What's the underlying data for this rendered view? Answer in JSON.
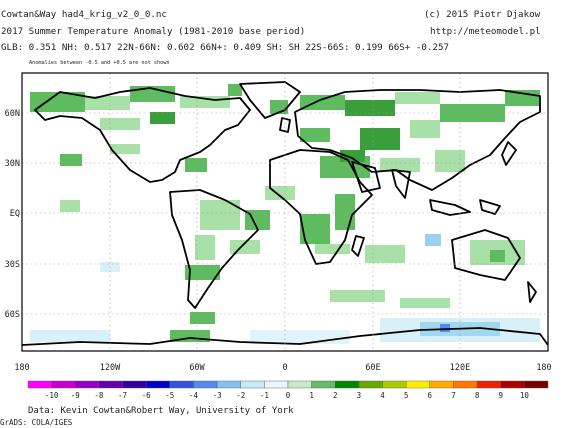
{
  "header": {
    "source": "Cowtan&Way had4_krig_v2_0_0.nc",
    "copyright": "(c) 2015 Piotr Djakow",
    "title": "2017 Summer Temperature Anomaly (1981-2010 base period)",
    "url": "http://meteomodel.pl",
    "stats": "GLB: 0.351 NH: 0.517 22N-66N: 0.602 66N+: 0.409 SH: SH 22S-66S: 0.199 66S+ -0.257",
    "note": "Anomalies between -0.5 and +0.5 are not shown"
  },
  "map": {
    "lat_labels": [
      "60N",
      "30N",
      "EQ",
      "30S",
      "60S"
    ],
    "lon_labels": [
      "180",
      "120W",
      "60W",
      "0",
      "60E",
      "120E",
      "180"
    ],
    "patches": [
      {
        "region": "alaska-canada",
        "value": 1.5,
        "color": "#5fbb5f"
      },
      {
        "region": "arctic-canada",
        "value": 1,
        "color": "#a8e0a8"
      },
      {
        "region": "siberia",
        "value": 2,
        "color": "#3a9e3a"
      },
      {
        "region": "europe",
        "value": 2,
        "color": "#3a9e3a"
      },
      {
        "region": "middle-east",
        "value": 2,
        "color": "#3a9e3a"
      },
      {
        "region": "africa",
        "value": 1.5,
        "color": "#5fbb5f"
      },
      {
        "region": "south-america",
        "value": 1.5,
        "color": "#5fbb5f"
      },
      {
        "region": "antarctica-east",
        "value": -1.5,
        "color": "#a0d8ef"
      },
      {
        "region": "antarctica-west",
        "value": -0.8,
        "color": "#d8f0f8"
      }
    ]
  },
  "colorbar": {
    "labels": [
      "-10",
      "-9",
      "-8",
      "-7",
      "-6",
      "-5",
      "-4",
      "-3",
      "-2",
      "-1",
      "0",
      "1",
      "2",
      "3",
      "4",
      "5",
      "6",
      "7",
      "8",
      "9",
      "10"
    ],
    "colors": [
      "#ff00ff",
      "#cc00cc",
      "#9900cc",
      "#6600aa",
      "#330099",
      "#0000cc",
      "#3355dd",
      "#5588ee",
      "#88c0ee",
      "#c8e8f8",
      "#e8f6ff",
      "#c8eac8",
      "#66bb66",
      "#008800",
      "#66aa00",
      "#aacc00",
      "#ffee00",
      "#ffaa00",
      "#ff7700",
      "#ee2200",
      "#aa0000",
      "#770000"
    ]
  },
  "footer": {
    "credit": "Data: Kevin Cowtan&Robert Way, University of York",
    "grads": "GrADS: COLA/IGES"
  }
}
